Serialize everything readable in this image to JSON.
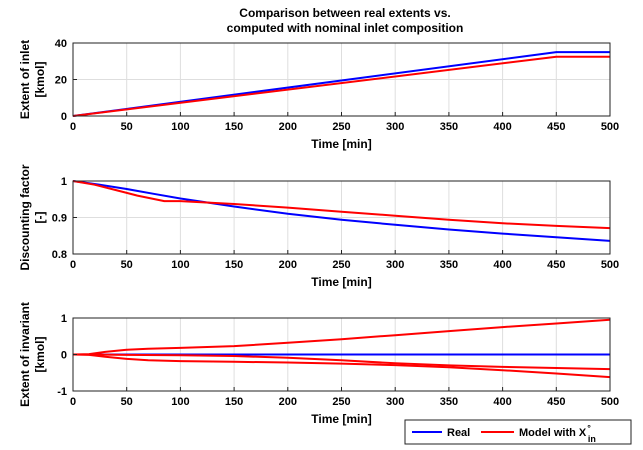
{
  "figure_title": [
    "Comparison between real extents vs.",
    "computed with nominal inlet composition"
  ],
  "legend": {
    "entries": [
      {
        "label": "Real",
        "color": "#0000ff"
      },
      {
        "label": "Model with X",
        "symbol_sub": "in",
        "symbol_sup": "°",
        "color": "#ff0000"
      }
    ]
  },
  "chart_data": [
    {
      "type": "line",
      "title": "",
      "xlabel": "Time [min]",
      "ylabel": [
        "Extent of inlet",
        "[kmol]"
      ],
      "xlim": [
        0,
        500
      ],
      "ylim": [
        0,
        40
      ],
      "xticks": [
        0,
        50,
        100,
        150,
        200,
        250,
        300,
        350,
        400,
        450,
        500
      ],
      "yticks": [
        0,
        20,
        40
      ],
      "grid": true,
      "series": [
        {
          "name": "Real",
          "color": "#0000ff",
          "x": [
            0,
            450,
            500
          ],
          "y": [
            0,
            35.0,
            35.0
          ]
        },
        {
          "name": "Model with X°in",
          "color": "#ff0000",
          "x": [
            0,
            450,
            500
          ],
          "y": [
            0,
            32.5,
            32.5
          ]
        }
      ]
    },
    {
      "type": "line",
      "title": "",
      "xlabel": "Time [min]",
      "ylabel": [
        "Discounting factor",
        "[-]"
      ],
      "xlim": [
        0,
        500
      ],
      "ylim": [
        0.8,
        1
      ],
      "xticks": [
        0,
        50,
        100,
        150,
        200,
        250,
        300,
        350,
        400,
        450,
        500
      ],
      "yticks": [
        0.8,
        0.9,
        1
      ],
      "grid": true,
      "series": [
        {
          "name": "Real",
          "color": "#0000ff",
          "x": [
            0,
            25,
            50,
            75,
            100,
            150,
            200,
            250,
            300,
            350,
            400,
            450,
            500
          ],
          "y": [
            1.0,
            0.99,
            0.978,
            0.965,
            0.952,
            0.93,
            0.91,
            0.894,
            0.88,
            0.867,
            0.856,
            0.846,
            0.836
          ]
        },
        {
          "name": "Model with X°in",
          "color": "#ff0000",
          "x": [
            0,
            20,
            40,
            60,
            85,
            100,
            150,
            200,
            250,
            300,
            350,
            400,
            450,
            500
          ],
          "y": [
            1.0,
            0.99,
            0.975,
            0.96,
            0.945,
            0.945,
            0.937,
            0.927,
            0.916,
            0.905,
            0.894,
            0.884,
            0.877,
            0.871
          ]
        }
      ]
    },
    {
      "type": "line",
      "title": "",
      "xlabel": "Time [min]",
      "ylabel": [
        "Extent of invariant",
        "[kmol]"
      ],
      "xlim": [
        0,
        500
      ],
      "ylim": [
        -1,
        1
      ],
      "xticks": [
        0,
        50,
        100,
        150,
        200,
        250,
        300,
        350,
        400,
        450,
        500
      ],
      "yticks": [
        -1,
        0,
        1
      ],
      "grid": true,
      "series": [
        {
          "name": "Real",
          "color": "#0000ff",
          "x": [
            0,
            500
          ],
          "y": [
            0,
            0
          ]
        },
        {
          "name": "Model with X°in (1)",
          "color": "#ff0000",
          "x": [
            0,
            15,
            30,
            50,
            70,
            100,
            150,
            200,
            250,
            300,
            350,
            400,
            450,
            500
          ],
          "y": [
            0,
            0.01,
            0.07,
            0.13,
            0.16,
            0.18,
            0.23,
            0.32,
            0.42,
            0.53,
            0.64,
            0.75,
            0.85,
            0.95
          ]
        },
        {
          "name": "Model with X°in (2)",
          "color": "#ff0000",
          "x": [
            0,
            15,
            50,
            100,
            150,
            200,
            250,
            300,
            350,
            400,
            450,
            500
          ],
          "y": [
            0,
            0.0,
            -0.01,
            -0.02,
            -0.04,
            -0.09,
            -0.16,
            -0.24,
            -0.3,
            -0.34,
            -0.37,
            -0.4
          ]
        },
        {
          "name": "Model with X°in (3)",
          "color": "#ff0000",
          "x": [
            0,
            15,
            30,
            50,
            70,
            100,
            150,
            200,
            250,
            300,
            350,
            400,
            450,
            500
          ],
          "y": [
            0,
            -0.01,
            -0.06,
            -0.12,
            -0.16,
            -0.18,
            -0.2,
            -0.22,
            -0.25,
            -0.29,
            -0.35,
            -0.43,
            -0.52,
            -0.62
          ]
        }
      ]
    }
  ]
}
